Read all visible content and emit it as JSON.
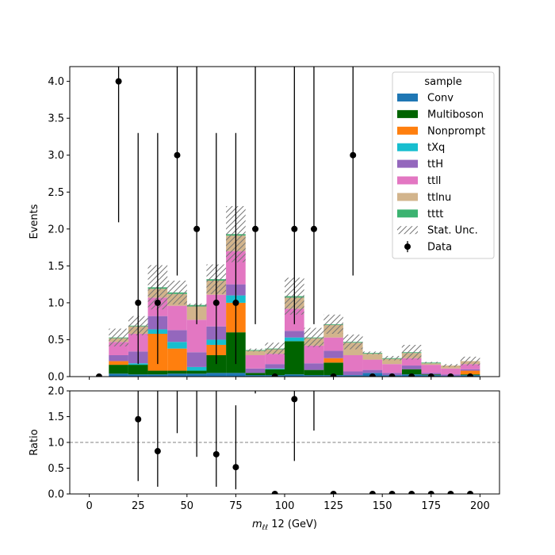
{
  "chart_data": {
    "type": "bar",
    "stacked": true,
    "bin_edges": [
      0,
      10,
      20,
      30,
      40,
      50,
      60,
      70,
      80,
      90,
      100,
      110,
      120,
      130,
      140,
      150,
      160,
      170,
      180,
      190,
      200
    ],
    "xlim": [
      -10,
      210
    ],
    "xticks": [
      0,
      25,
      50,
      75,
      100,
      125,
      150,
      175,
      200
    ],
    "xlabel": "$m_{\\ell\\ell}$ 12 (GeV)",
    "xlabel_parts": {
      "m": "m",
      "sub": "ℓℓ",
      "rest": " 12 (GeV)"
    },
    "ylabel": "Events",
    "ylim": [
      0,
      4.2
    ],
    "yticks": [
      "0.0",
      "0.5",
      "1.0",
      "1.5",
      "2.0",
      "2.5",
      "3.0",
      "3.5",
      "4.0"
    ],
    "ytick_values": [
      0,
      0.5,
      1.0,
      1.5,
      2.0,
      2.5,
      3.0,
      3.5,
      4.0
    ],
    "legend": {
      "title": "sample",
      "placement": "upper right"
    },
    "series": [
      {
        "name": "Conv",
        "color": "#1f77b4",
        "values": [
          0,
          0.04,
          0.03,
          0.03,
          0.04,
          0.04,
          0.05,
          0.05,
          0.02,
          0.02,
          0.03,
          0.02,
          0.02,
          0.02,
          0.05,
          0.02,
          0.03,
          0.02,
          0.01,
          0.02
        ]
      },
      {
        "name": "Multiboson",
        "color": "#006400",
        "values": [
          0,
          0.12,
          0.13,
          0.05,
          0.04,
          0.04,
          0.24,
          0.55,
          0.03,
          0.08,
          0.45,
          0.07,
          0.17,
          0.0,
          0.0,
          0.0,
          0.07,
          0.01,
          0.0,
          0.01
        ]
      },
      {
        "name": "Nonprompt",
        "color": "#ff7f0e",
        "values": [
          0,
          0.05,
          0.0,
          0.5,
          0.3,
          0.0,
          0.14,
          0.4,
          0.0,
          0.0,
          0.0,
          0.0,
          0.06,
          0.0,
          0.0,
          0.0,
          0.0,
          0.0,
          0.0,
          0.05
        ]
      },
      {
        "name": "tXq",
        "color": "#17becf",
        "values": [
          0,
          0.0,
          0.02,
          0.06,
          0.09,
          0.05,
          0.07,
          0.1,
          0.0,
          0.01,
          0.05,
          0.0,
          0.0,
          0.0,
          0.0,
          0.0,
          0.0,
          0.0,
          0.0,
          0.0
        ]
      },
      {
        "name": "ttH",
        "color": "#9467bd",
        "values": [
          0,
          0.08,
          0.16,
          0.18,
          0.16,
          0.2,
          0.18,
          0.15,
          0.06,
          0.06,
          0.09,
          0.09,
          0.1,
          0.05,
          0.04,
          0.03,
          0.05,
          0.02,
          0.02,
          0.02
        ]
      },
      {
        "name": "ttll",
        "color": "#e377c2",
        "values": [
          0,
          0.18,
          0.24,
          0.25,
          0.33,
          0.44,
          0.43,
          0.45,
          0.18,
          0.14,
          0.3,
          0.24,
          0.18,
          0.22,
          0.14,
          0.12,
          0.1,
          0.11,
          0.08,
          0.07
        ]
      },
      {
        "name": "ttlnu",
        "color": "#d2b48c",
        "values": [
          0,
          0.05,
          0.1,
          0.12,
          0.16,
          0.18,
          0.19,
          0.21,
          0.06,
          0.06,
          0.15,
          0.1,
          0.17,
          0.17,
          0.08,
          0.07,
          0.07,
          0.02,
          0.04,
          0.04
        ]
      },
      {
        "name": "tttt",
        "color": "#3cb371",
        "values": [
          0,
          0.01,
          0.01,
          0.02,
          0.02,
          0.02,
          0.02,
          0.02,
          0.01,
          0.01,
          0.02,
          0.01,
          0.01,
          0.01,
          0.01,
          0.01,
          0.01,
          0.01,
          0.0,
          0.0
        ]
      }
    ],
    "stat_unc": {
      "name": "Stat. Unc.",
      "halfwidth": [
        0,
        0.12,
        0.13,
        0.3,
        0.16,
        0.02,
        0.2,
        0.38,
        0.02,
        0.08,
        0.25,
        0.13,
        0.13,
        0.1,
        0.02,
        0.03,
        0.1,
        0.01,
        0.02,
        0.06
      ]
    },
    "data": {
      "name": "Data",
      "x": [
        5,
        15,
        25,
        35,
        45,
        55,
        65,
        75,
        85,
        95,
        105,
        115,
        125,
        135,
        145,
        155,
        165,
        175,
        185,
        195
      ],
      "y": [
        0,
        4,
        1,
        1,
        3,
        2,
        1,
        1,
        2,
        0,
        2,
        2,
        0,
        3,
        0,
        0,
        0,
        0,
        0,
        0
      ],
      "yerr_low": [
        0,
        1.91,
        0.83,
        0.83,
        1.63,
        1.29,
        0.83,
        0.83,
        1.29,
        0,
        1.29,
        1.29,
        0,
        1.63,
        0,
        0,
        0,
        0,
        0,
        0
      ],
      "yerr_high": [
        0,
        3.16,
        2.3,
        2.3,
        2.92,
        2.64,
        2.3,
        2.3,
        2.64,
        0,
        2.64,
        2.64,
        0,
        2.92,
        0,
        0,
        0,
        0,
        0,
        0
      ]
    },
    "ratio": {
      "ylabel": "Ratio",
      "ylim": [
        0,
        2.0
      ],
      "yticks": [
        "0.0",
        "0.5",
        "1.0",
        "1.5",
        "2.0"
      ],
      "ytick_values": [
        0,
        0.5,
        1.0,
        1.5,
        2.0
      ],
      "reference_line": 1.0,
      "x": [
        25,
        35,
        65,
        75,
        95,
        105,
        125,
        145,
        155,
        165,
        175,
        185,
        195
      ],
      "y": [
        1.45,
        0.83,
        0.77,
        0.52,
        0,
        1.84,
        0,
        0,
        0,
        0,
        0,
        0,
        0
      ],
      "yerr_low": [
        1.2,
        0.69,
        0.63,
        0.43,
        0,
        1.2,
        0,
        0,
        0,
        0,
        0,
        0,
        0
      ],
      "yerr_high": [
        2.0,
        2.0,
        1.9,
        1.2,
        0,
        2.0,
        0,
        0,
        0,
        0,
        0,
        0,
        0
      ],
      "errorbar_only": [
        {
          "x": 45,
          "lo": 1.18
        },
        {
          "x": 55,
          "lo": 0.72
        },
        {
          "x": 85,
          "lo": 1.95
        },
        {
          "x": 115,
          "lo": 1.23
        }
      ]
    }
  }
}
